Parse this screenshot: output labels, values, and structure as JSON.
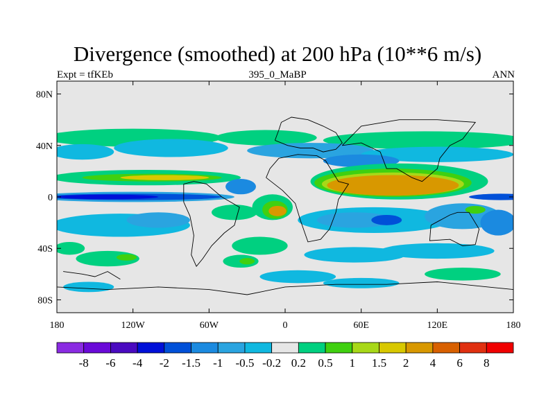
{
  "chart_data": {
    "type": "heatmap",
    "title": "Divergence (smoothed) at 200 hPa (10**6 m/s)",
    "left_label": "Expt = tfKEb",
    "center_label": "395_0_MaBP",
    "right_label": "ANN",
    "x_ticks": [
      "180",
      "120W",
      "60W",
      "0",
      "60E",
      "120E",
      "180"
    ],
    "y_ticks": [
      "80N",
      "40N",
      "0",
      "40S",
      "80S"
    ],
    "xlim": [
      -180,
      180
    ],
    "ylim": [
      -90,
      90
    ],
    "colorbar": {
      "labels": [
        "-8",
        "-6",
        "-4",
        "-2",
        "-1.5",
        "-1",
        "-0.5",
        "-0.2",
        "0.2",
        "0.5",
        "1",
        "1.5",
        "2",
        "4",
        "6",
        "8"
      ],
      "colors": [
        "#8a2be2",
        "#6a0ad8",
        "#4a0ac0",
        "#0010d8",
        "#0050d8",
        "#1b8ae0",
        "#2aa4e0",
        "#10b8e0",
        "#e6e6e6",
        "#00d080",
        "#40d010",
        "#a8d818",
        "#d8c800",
        "#d89800",
        "#d86000",
        "#e03010",
        "#f00000"
      ]
    },
    "fill_colors": {
      "background": "#e6e6e6",
      "neg_weak": "#10b8e0",
      "neg_mid": "#2aa4e0",
      "neg_strong": "#1b8ae0",
      "neg_deep": "#0050d8",
      "neg_max": "#0010d8",
      "pos_weak": "#00d080",
      "pos_mid": "#40d010",
      "pos_strong": "#a8d818",
      "pos_high": "#d8c800",
      "pos_max": "#d89800",
      "pos_peak": "#d86000",
      "outline": "#000000"
    }
  }
}
